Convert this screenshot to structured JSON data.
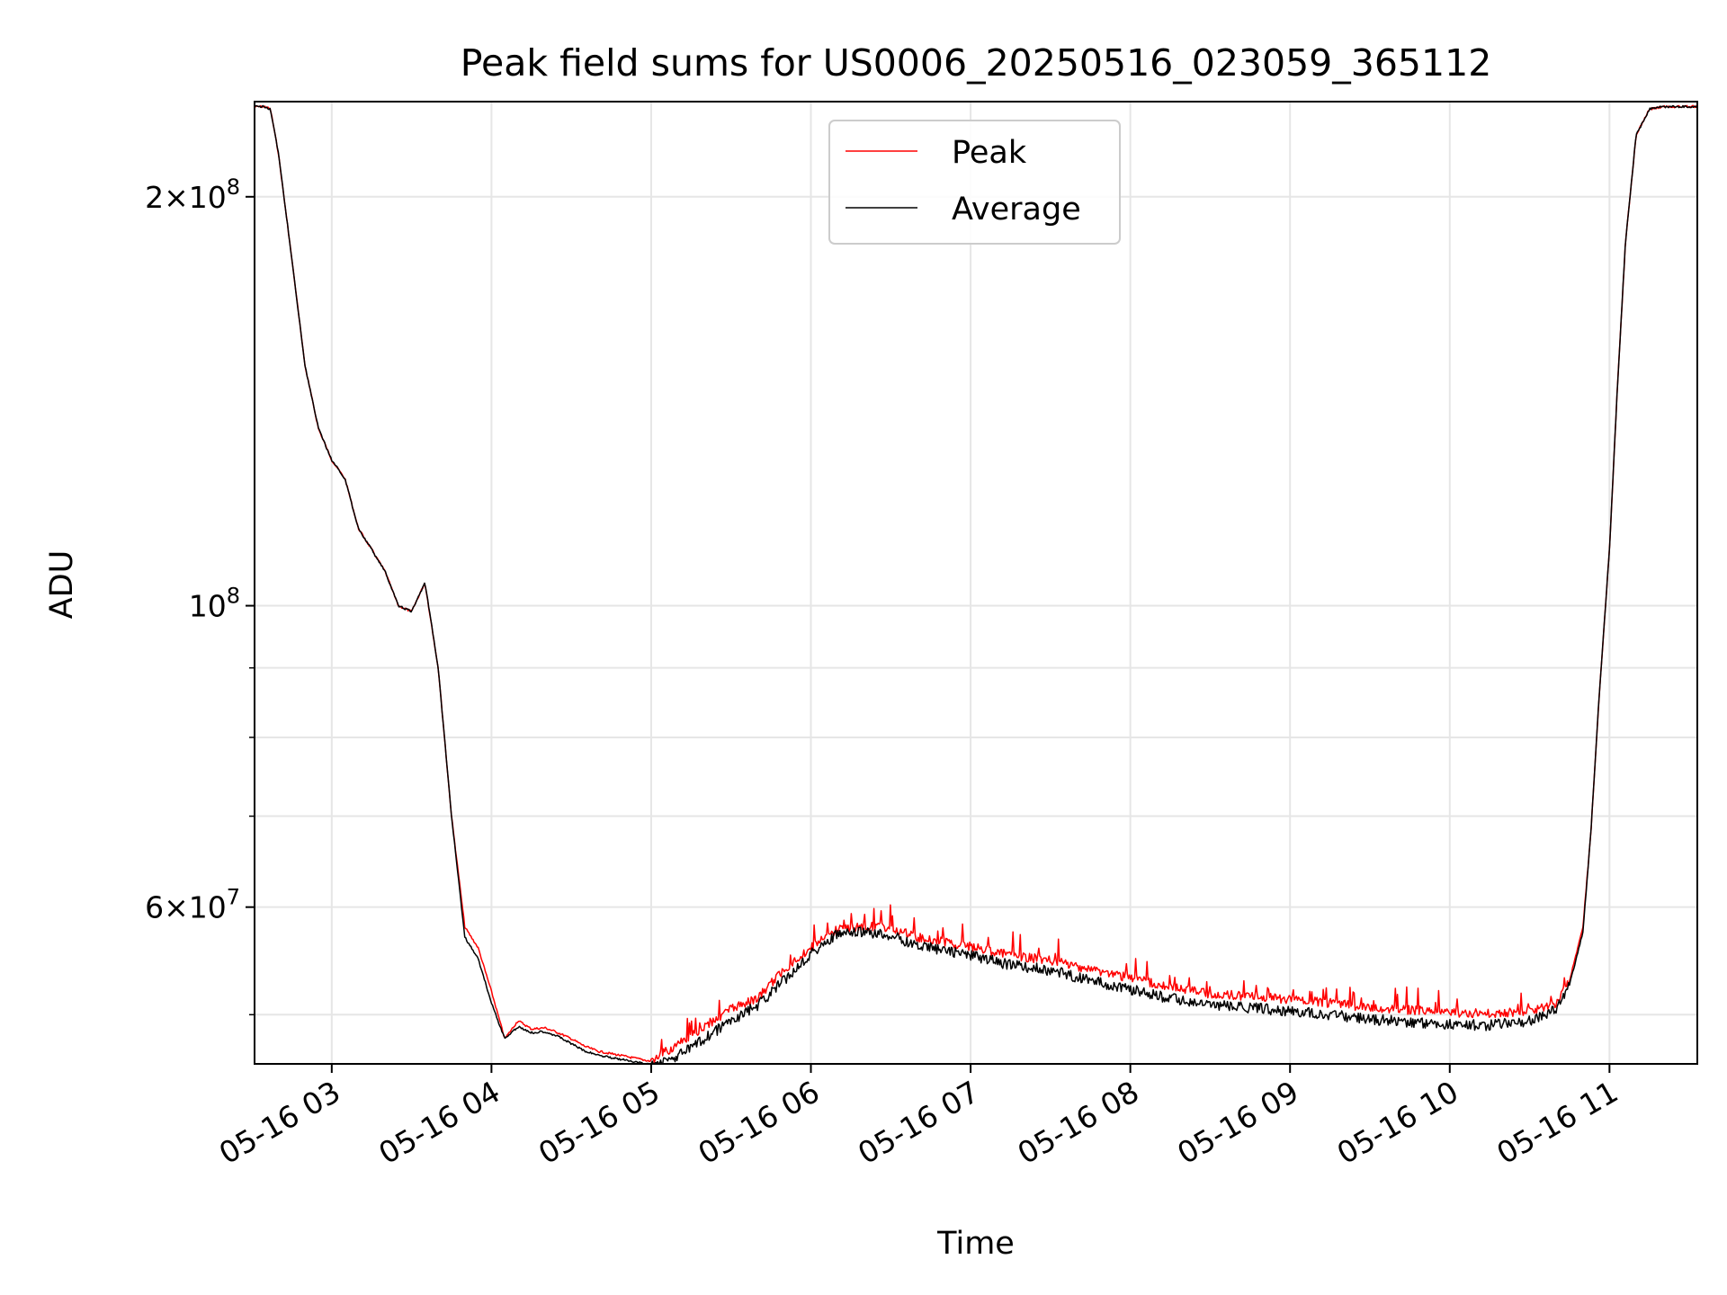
{
  "chart_data": {
    "type": "line",
    "title": "Peak field sums for US0006_20250516_023059_365112",
    "xlabel": "Time",
    "ylabel": "ADU",
    "y_scale": "log",
    "grid": true,
    "legend_position": "top-center",
    "xlim": [
      "05-16 02:31",
      "05-16 11:33"
    ],
    "ylim": [
      46000000,
      235000000
    ],
    "x_ticks": [
      "05-16 03",
      "05-16 04",
      "05-16 05",
      "05-16 06",
      "05-16 07",
      "05-16 08",
      "05-16 09",
      "05-16 10",
      "05-16 11"
    ],
    "y_ticks": [
      {
        "value": 200000000,
        "mantissa": "2",
        "exponent": "8"
      },
      {
        "value": 100000000,
        "mantissa": "",
        "exponent": "8"
      },
      {
        "value": 60000000,
        "mantissa": "6",
        "exponent": "7"
      }
    ],
    "y_minor_ticks": [
      50000000,
      70000000,
      80000000,
      90000000
    ],
    "x": [
      "02:31",
      "02:35",
      "02:37",
      "02:40",
      "02:45",
      "02:50",
      "02:55",
      "03:00",
      "03:05",
      "03:10",
      "03:15",
      "03:20",
      "03:25",
      "03:30",
      "03:35",
      "03:40",
      "03:45",
      "03:50",
      "03:55",
      "04:00",
      "04:05",
      "04:10",
      "04:15",
      "04:20",
      "04:25",
      "04:30",
      "04:35",
      "04:40",
      "04:45",
      "04:50",
      "04:55",
      "05:00",
      "05:05",
      "05:10",
      "05:20",
      "05:30",
      "05:40",
      "05:50",
      "06:00",
      "06:10",
      "06:20",
      "06:30",
      "06:40",
      "06:50",
      "07:00",
      "07:15",
      "07:30",
      "07:45",
      "08:00",
      "08:15",
      "08:30",
      "08:45",
      "09:00",
      "09:15",
      "09:30",
      "09:45",
      "10:00",
      "10:15",
      "10:30",
      "10:40",
      "10:45",
      "10:50",
      "10:53",
      "10:56",
      "11:00",
      "11:03",
      "11:06",
      "11:10",
      "11:15",
      "11:20",
      "11:25",
      "11:33"
    ],
    "series": [
      {
        "name": "Peak",
        "color": "#ff0000",
        "values": [
          233,
          233,
          232,
          215,
          180,
          150,
          135,
          128,
          124,
          114,
          110,
          106,
          100,
          99,
          104,
          90,
          70,
          58,
          56,
          52,
          48,
          49.5,
          48.8,
          48.9,
          48.5,
          48,
          47.4,
          47,
          46.8,
          46.6,
          46.4,
          46.2,
          46.9,
          47.5,
          49,
          50.5,
          51.4,
          54,
          56,
          57.8,
          58.1,
          57.9,
          57,
          56.6,
          56.1,
          55.3,
          54.8,
          54,
          53.2,
          52.4,
          51.8,
          51.6,
          51.3,
          51,
          50.6,
          50.4,
          50.2,
          50.1,
          50.3,
          51,
          53,
          58,
          68,
          85,
          110,
          145,
          185,
          222,
          232,
          233,
          233,
          233
        ]
      },
      {
        "name": "Average",
        "color": "#000000",
        "values": [
          233,
          233,
          232,
          215,
          180,
          150,
          135,
          128,
          124,
          114,
          110,
          106,
          100,
          99,
          104,
          90,
          70,
          57,
          55,
          51,
          48,
          49,
          48.5,
          48.6,
          48.2,
          47.6,
          47,
          46.7,
          46.5,
          46.3,
          46.1,
          45.9,
          46.2,
          46.6,
          48,
          49.5,
          50.8,
          53,
          55.5,
          57.3,
          57.5,
          57.2,
          56.2,
          55.8,
          55.3,
          54.4,
          53.9,
          53,
          52.2,
          51.4,
          50.8,
          50.6,
          50.3,
          50,
          49.6,
          49.4,
          49.2,
          49.1,
          49.5,
          50.4,
          52.6,
          57.5,
          68,
          85,
          110,
          145,
          185,
          222,
          232,
          233,
          233,
          233
        ]
      }
    ]
  }
}
